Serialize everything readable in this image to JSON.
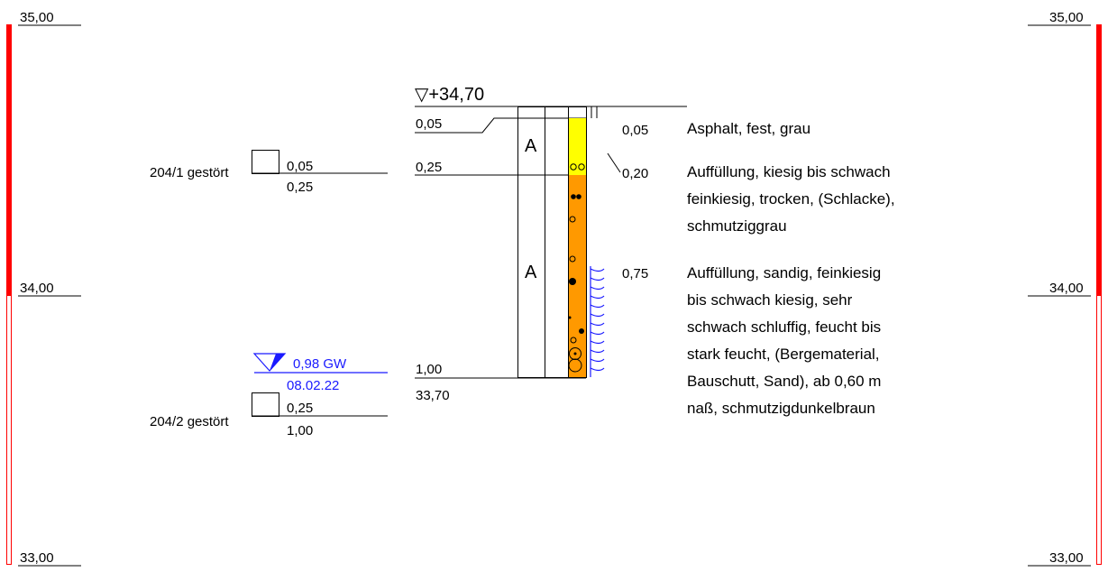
{
  "scale": {
    "labels": [
      "35,00",
      "34,00",
      "33,00"
    ],
    "colors": {
      "fill": "#ff0000",
      "outline": "#ff0000"
    }
  },
  "ground_level": "▽+34,70",
  "depth_markers": {
    "d005": "0,05",
    "d025": "0,25",
    "d100": "1,00",
    "bottom_abs": "33,70"
  },
  "layer_codes": {
    "a1": "A",
    "a2": "A"
  },
  "samples": [
    {
      "name": "204/1 gestört",
      "top": "0,05",
      "bottom": "0,25"
    },
    {
      "name": "204/2 gestört",
      "top": "0,25",
      "bottom": "1,00"
    }
  ],
  "groundwater": {
    "depth": "0,98 GW",
    "date": "08.02.22",
    "color": "#1a1aff"
  },
  "layers": [
    {
      "depth": "0,05",
      "lines": [
        "Asphalt, fest, grau"
      ]
    },
    {
      "depth": "0,20",
      "lines": [
        "Auffüllung, kiesig bis schwach",
        "feinkiesig, trocken, (Schlacke),",
        "schmutziggrau"
      ]
    },
    {
      "depth": "0,75",
      "lines": [
        "Auffüllung, sandig, feinkiesig",
        "bis schwach kiesig, sehr",
        "schwach schluffig, feucht bis",
        "stark feucht, (Bergematerial,",
        "Bauschutt, Sand), ab 0,60 m",
        "naß, schmutzigdunkelbraun"
      ]
    }
  ],
  "legend_colors": {
    "asphalt": "#ffff00",
    "fill": "#ff9900"
  }
}
